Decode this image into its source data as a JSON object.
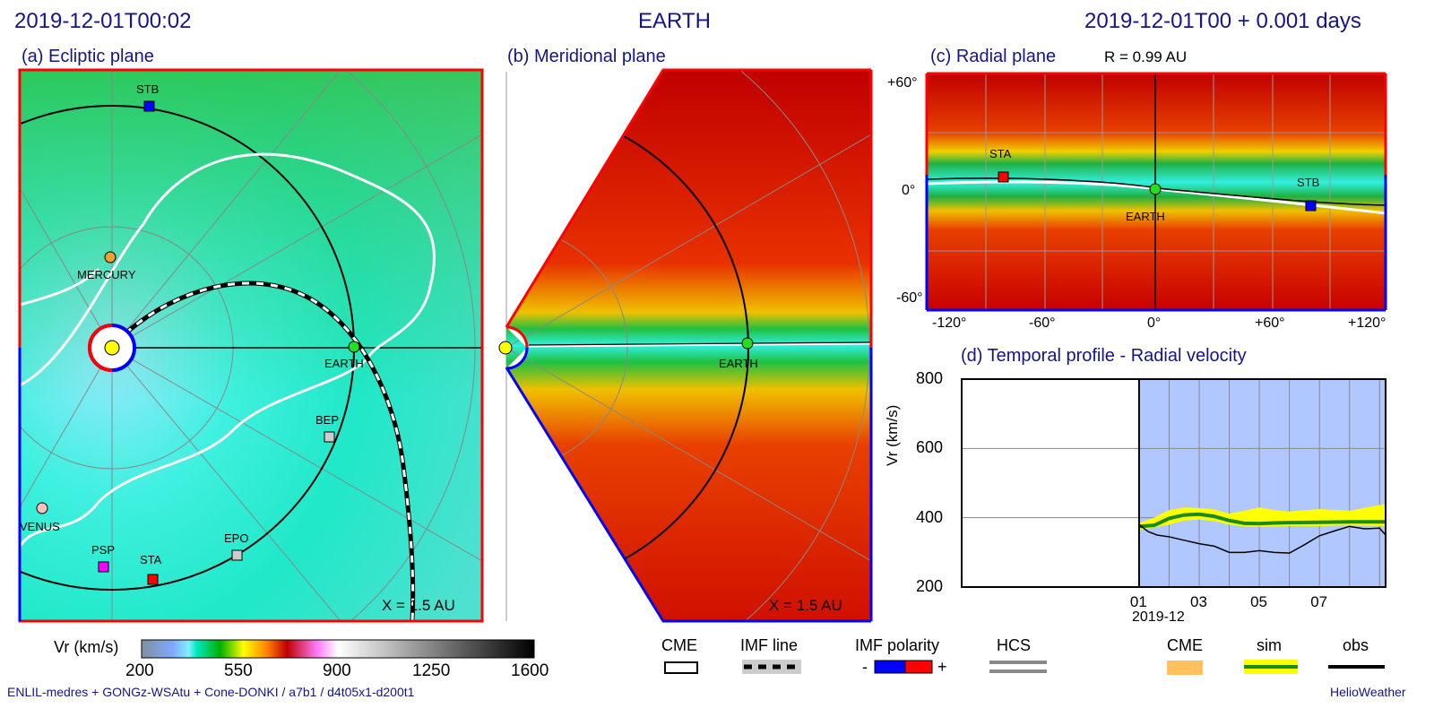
{
  "header": {
    "left_time": "2019-12-01T00:02",
    "center_target": "EARTH",
    "right_time": "2019-12-01T00 +  0.001 days"
  },
  "panels": {
    "a": {
      "title": "(a) Ecliptic plane",
      "scale": "X = 1.5 AU",
      "objects": [
        "STB",
        "MERCURY",
        "EARTH",
        "BEP",
        "VENUS",
        "PSP",
        "STA",
        "EPO"
      ]
    },
    "b": {
      "title": "(b) Meridional plane",
      "scale": "X = 1.5 AU",
      "objects": [
        "EARTH"
      ]
    },
    "c": {
      "title": "(c) Radial plane",
      "radius": "R = 0.99 AU",
      "y_ticks": [
        "+60°",
        "0°",
        "-60°"
      ],
      "x_ticks": [
        "-120°",
        "-60°",
        "0°",
        "+60°",
        "+120°"
      ],
      "objects": [
        "STA",
        "EARTH",
        "STB"
      ]
    }
  },
  "colorbar": {
    "label": "Vr (km/s)",
    "ticks": [
      "200",
      "550",
      "900",
      "1250",
      "1600"
    ]
  },
  "legend": {
    "cme": "CME",
    "imf_line": "IMF line",
    "imf_polarity": "IMF polarity",
    "minus": "-",
    "plus": "+",
    "hcs": "HCS",
    "d_cme": "CME",
    "d_sim": "sim",
    "d_obs": "obs"
  },
  "footer": {
    "run_info": "ENLIL-medres + GONGz-WSAtu + Cone-DONKI / a7b1 / d4t05x1-d200t1",
    "brand": "HelioWeather"
  },
  "colors": {
    "title": "#14148c",
    "polarity_neg": "#0000ff",
    "polarity_pos": "#ff0000",
    "sim": "#1a8c1a",
    "band": "#ffff00",
    "bg_forecast": "#b0c8ff"
  },
  "chart_data": {
    "type": "line",
    "title": "(d) Temporal profile - Radial velocity",
    "xlabel": "2019-12",
    "ylabel": "Vr (km/s)",
    "ylim": [
      200,
      800
    ],
    "xlim_days": [
      -5.9,
      8.2
    ],
    "x_ticks": [
      "01",
      "03",
      "05",
      "07"
    ],
    "x_tick_days": [
      0,
      2,
      4,
      6
    ],
    "y_ticks": [
      "200",
      "400",
      "600",
      "800"
    ],
    "y_tick_values": [
      200,
      400,
      600,
      800
    ],
    "grid": true,
    "series": [
      {
        "name": "sim",
        "x": [
          0,
          0.5,
          1,
          1.5,
          2,
          2.5,
          3,
          3.5,
          4,
          4.5,
          5,
          6,
          7,
          8.2
        ],
        "values": [
          375,
          378,
          398,
          408,
          410,
          404,
          392,
          384,
          383,
          385,
          386,
          387,
          388,
          388
        ]
      },
      {
        "name": "sim band upper",
        "x": [
          0,
          0.5,
          1,
          1.5,
          2,
          2.5,
          3,
          3.5,
          4,
          4.5,
          5,
          6,
          7,
          8.2
        ],
        "values": [
          385,
          400,
          422,
          430,
          428,
          424,
          412,
          420,
          430,
          422,
          418,
          425,
          420,
          440
        ]
      },
      {
        "name": "sim band lower",
        "x": [
          0,
          0.5,
          1,
          1.5,
          2,
          2.5,
          3,
          3.5,
          4,
          4.5,
          5,
          6,
          7,
          8.2
        ],
        "values": [
          365,
          372,
          380,
          392,
          395,
          390,
          380,
          375,
          374,
          375,
          376,
          376,
          378,
          376
        ]
      },
      {
        "name": "obs",
        "x": [
          0,
          0.3,
          0.6,
          1,
          1.5,
          2,
          2.5,
          3,
          3.5,
          4,
          4.5,
          5,
          5.5,
          6,
          6.5,
          7,
          7.5,
          8,
          8.2
        ],
        "values": [
          380,
          360,
          350,
          345,
          335,
          325,
          318,
          300,
          300,
          305,
          300,
          298,
          322,
          348,
          362,
          375,
          368,
          370,
          350
        ]
      }
    ]
  }
}
